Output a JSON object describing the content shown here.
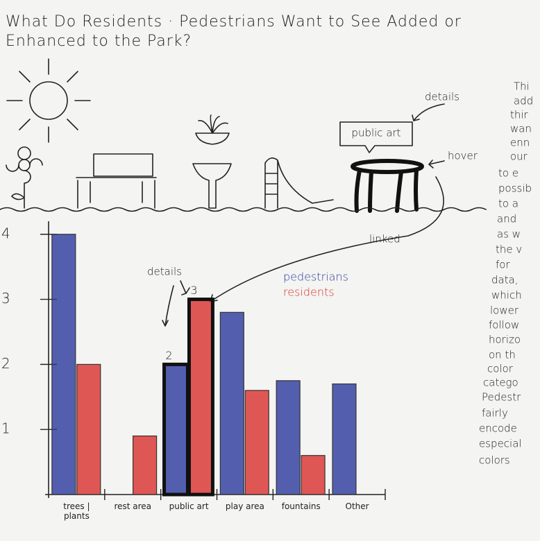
{
  "chart_data": {
    "type": "bar",
    "title": "What Do Residents · Pedestrians Want to See Added or Enhanced to the Park?",
    "categories": [
      "trees | plants",
      "rest area",
      "public art",
      "play area",
      "fountains",
      "Other"
    ],
    "series": [
      {
        "name": "pedestrians",
        "color": "#2b3a9c",
        "values": [
          4,
          null,
          2,
          2.8,
          1.75,
          1.7
        ]
      },
      {
        "name": "residents",
        "color": "#d9302c",
        "values": [
          2,
          0.9,
          3,
          1.6,
          0.6,
          null
        ]
      }
    ],
    "ylim": [
      0,
      4.2
    ],
    "yticks": [
      1,
      2,
      3,
      4
    ],
    "highlight_index": 2,
    "annotations": {
      "details_chart": "details",
      "details_scene": "details",
      "public_art": "public art",
      "hover": "hover",
      "linked": "linked"
    }
  },
  "notes": {
    "lines": [
      "Thi",
      "add",
      "thir",
      "wan",
      "enn",
      "our",
      "to e",
      "possib",
      "to a",
      "and",
      "as w",
      "the v",
      "for",
      "data,",
      "which",
      "lower",
      "follow",
      "horizo",
      "on th",
      "color",
      "catego",
      "Pedestr",
      "fairly",
      "encode",
      "especial",
      "colors"
    ]
  }
}
